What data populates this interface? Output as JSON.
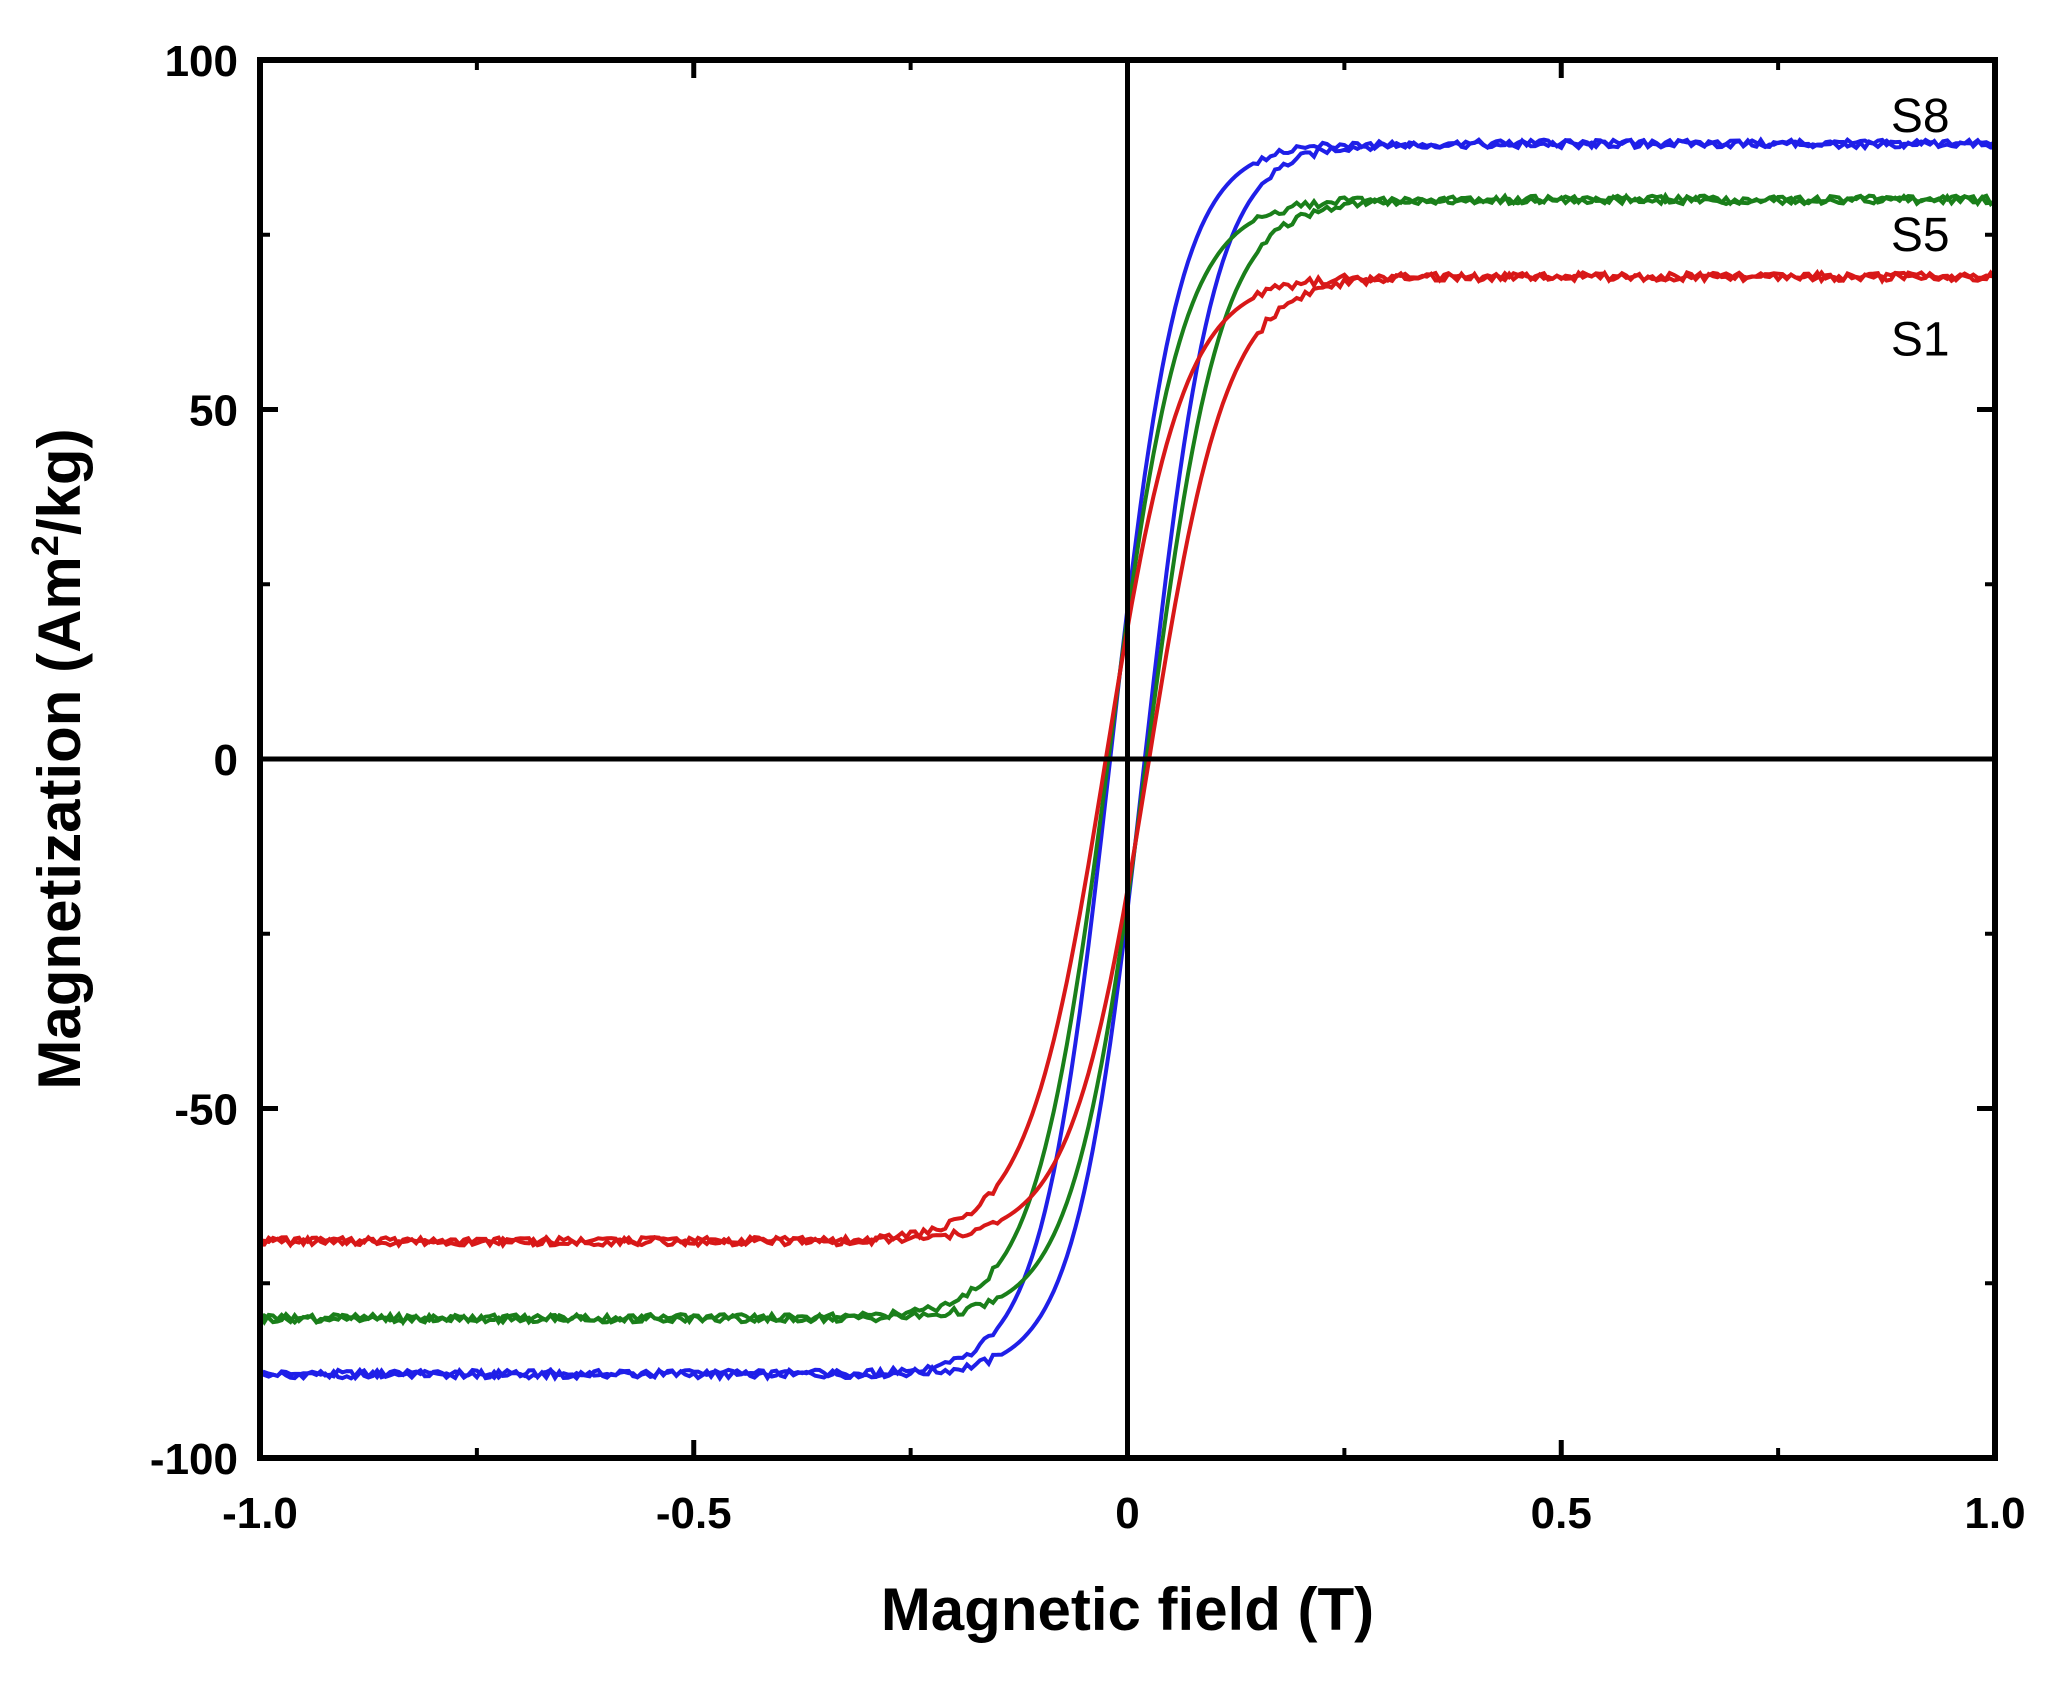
{
  "chart_data": {
    "type": "line",
    "title": "",
    "xlabel": "Magnetic field (T)",
    "ylabel_main": "Magnetization (Am",
    "ylabel_sup": "2",
    "ylabel_tail": "/kg)",
    "xlim": [
      -1.0,
      1.0
    ],
    "ylim": [
      -100,
      100
    ],
    "x_ticks": [
      -1.0,
      -0.5,
      0,
      0.5,
      1.0
    ],
    "x_tick_labels": [
      "-1.0",
      "-0.5",
      "0",
      "0.5",
      "1.0"
    ],
    "x_minor_ticks": [
      -0.75,
      -0.25,
      0.25,
      0.75
    ],
    "y_ticks": [
      -100,
      -50,
      0,
      50,
      100
    ],
    "y_tick_labels": [
      "-100",
      "-50",
      "0",
      "50",
      "100"
    ],
    "y_minor_ticks": [
      -75,
      -25,
      25,
      75
    ],
    "grid": false,
    "zero_lines": true,
    "series": [
      {
        "name": "S8",
        "color": "#1f1fe8",
        "ms": 88,
        "mr": 30,
        "hc": 0.02,
        "width": 0.08,
        "label_at": [
          0.88,
          92
        ]
      },
      {
        "name": "S5",
        "color": "#1a7f1a",
        "ms": 80,
        "mr": 28,
        "hc": 0.022,
        "width": 0.085,
        "label_at": [
          0.88,
          75
        ]
      },
      {
        "name": "S1",
        "color": "#d81818",
        "ms": 69,
        "mr": 24,
        "hc": 0.025,
        "width": 0.09,
        "label_at": [
          0.88,
          60
        ]
      }
    ]
  }
}
